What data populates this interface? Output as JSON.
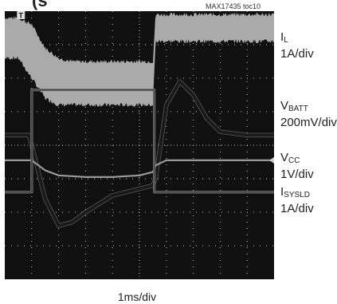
{
  "title_fragment": "(s",
  "figure_id": "MAX17435 toc10",
  "time_scale": "1ms/div",
  "colors": {
    "screen_bg": "#101010",
    "grid": "#ffffff",
    "il_trace": "#aaaaaa",
    "vbatt_trace": "#1a1a1a",
    "vcc_trace": "#999999",
    "isysld_trace": "#4a4a4a"
  },
  "channels": [
    {
      "name": "I",
      "sub": "L",
      "scale": "1A/div"
    },
    {
      "name": "V",
      "sub": "BATT",
      "scale": "200mV/div"
    },
    {
      "name": "V",
      "sub": "CC",
      "scale": "1V/div"
    },
    {
      "name": "I",
      "sub": "SYSLD",
      "scale": "1A/div"
    }
  ],
  "chart_data": {
    "type": "line",
    "xlabel": "1ms/div",
    "grid": true,
    "divisions": {
      "x": 10,
      "y": 8
    },
    "series": [
      {
        "key": "IL",
        "style": "band",
        "x": [
          0,
          0.5,
          1.0,
          1.5,
          2.0,
          2.5,
          3.0,
          4.0,
          5.0,
          5.5,
          5.6,
          6.0,
          7.0,
          8.0,
          9.0,
          10.0
        ],
        "upper": [
          7.8,
          7.8,
          7.6,
          6.9,
          6.6,
          6.5,
          6.5,
          6.5,
          6.5,
          6.5,
          7.9,
          7.9,
          7.9,
          7.9,
          7.9,
          7.9
        ],
        "lower": [
          6.6,
          6.6,
          6.0,
          5.4,
          5.2,
          5.2,
          5.2,
          5.2,
          5.2,
          5.2,
          7.1,
          7.1,
          7.1,
          7.1,
          7.1,
          7.1
        ]
      },
      {
        "key": "VBATT",
        "style": "thick",
        "x": [
          0,
          0.9,
          1.0,
          1.5,
          2.0,
          2.5,
          3.0,
          4.0,
          5.0,
          5.5,
          5.6,
          6.0,
          6.5,
          7.0,
          7.5,
          8.0,
          9.0,
          10.0
        ],
        "y": [
          4.3,
          4.3,
          4.0,
          2.4,
          1.6,
          1.7,
          2.0,
          2.5,
          2.7,
          2.8,
          3.0,
          5.2,
          5.9,
          5.5,
          4.8,
          4.4,
          4.3,
          4.3
        ]
      },
      {
        "key": "VCC",
        "style": "thin",
        "x": [
          0,
          0.9,
          1.0,
          1.5,
          2.0,
          3.0,
          4.0,
          5.0,
          5.5,
          5.6,
          6.0,
          7.0,
          8.0,
          9.0,
          10.0
        ],
        "y": [
          3.55,
          3.55,
          3.55,
          3.25,
          3.1,
          3.05,
          3.05,
          3.1,
          3.2,
          3.4,
          3.55,
          3.55,
          3.55,
          3.55,
          3.55
        ]
      },
      {
        "key": "ISYSLD",
        "style": "thin",
        "x": [
          0,
          1.0,
          1.0,
          5.55,
          5.55,
          10.0
        ],
        "y": [
          2.6,
          2.6,
          5.65,
          5.65,
          2.6,
          2.6
        ]
      }
    ]
  }
}
